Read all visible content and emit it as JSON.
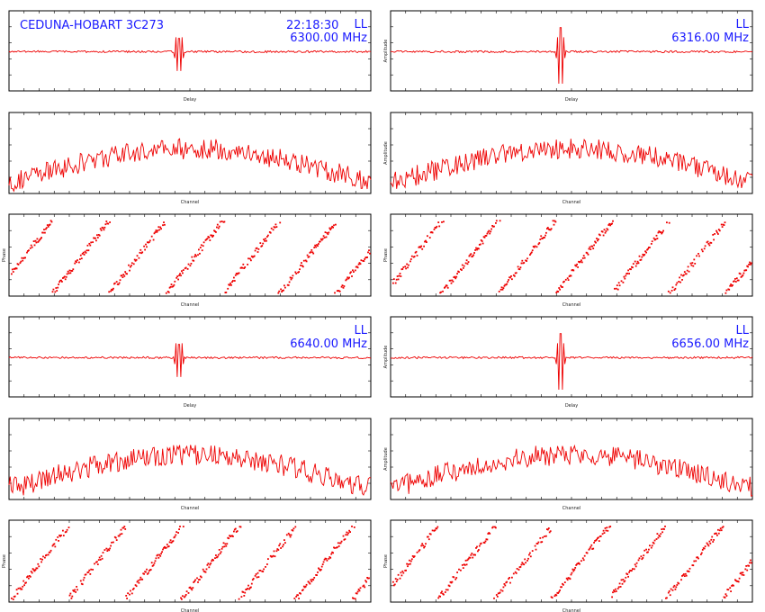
{
  "title": "CEDUNA-HOBART 3C273",
  "time": "22:18:30",
  "colors": {
    "trace": "#ee0000",
    "annotation": "#1a1aff",
    "frame": "#000000"
  },
  "chart_data": [
    {
      "type": "line",
      "band": 0,
      "column": 0,
      "row": 0,
      "xlabel": "Delay",
      "ylabel": "",
      "pol": "LL",
      "freq": "6300.00 MHz",
      "showTime": true
    },
    {
      "type": "line",
      "band": 0,
      "column": 0,
      "row": 1,
      "xlabel": "Channel",
      "ylabel": ""
    },
    {
      "type": "scatter",
      "band": 0,
      "column": 0,
      "row": 2,
      "xlabel": "Channel",
      "ylabel": "Phase"
    },
    {
      "type": "line",
      "band": 0,
      "column": 1,
      "row": 0,
      "xlabel": "Delay",
      "ylabel": "Amplitude",
      "pol": "LL",
      "freq": "6316.00 MHz"
    },
    {
      "type": "line",
      "band": 0,
      "column": 1,
      "row": 1,
      "xlabel": "Channel",
      "ylabel": "Amplitude"
    },
    {
      "type": "scatter",
      "band": 0,
      "column": 1,
      "row": 2,
      "xlabel": "Channel",
      "ylabel": "Phase"
    },
    {
      "type": "line",
      "band": 1,
      "column": 0,
      "row": 0,
      "xlabel": "Delay",
      "ylabel": "",
      "pol": "LL",
      "freq": "6640.00 MHz"
    },
    {
      "type": "line",
      "band": 1,
      "column": 0,
      "row": 1,
      "xlabel": "Channel",
      "ylabel": ""
    },
    {
      "type": "scatter",
      "band": 1,
      "column": 0,
      "row": 2,
      "xlabel": "Channel",
      "ylabel": "Phase"
    },
    {
      "type": "line",
      "band": 1,
      "column": 1,
      "row": 0,
      "xlabel": "Delay",
      "ylabel": "Amplitude",
      "pol": "LL",
      "freq": "6656.00 MHz"
    },
    {
      "type": "line",
      "band": 1,
      "column": 1,
      "row": 1,
      "xlabel": "Channel",
      "ylabel": "Amplitude"
    },
    {
      "type": "scatter",
      "band": 1,
      "column": 1,
      "row": 2,
      "xlabel": "Channel",
      "ylabel": "Phase"
    }
  ]
}
